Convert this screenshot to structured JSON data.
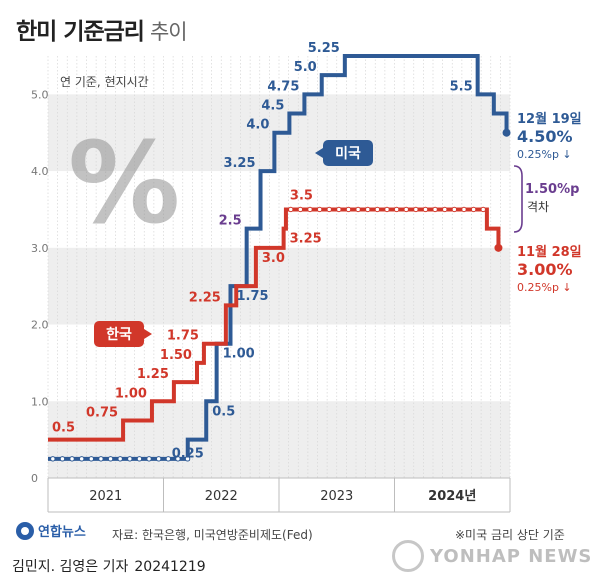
{
  "header": {
    "title": "한미 기준금리",
    "subtitle": "추이"
  },
  "note_unit": "연 기준, 현지시간",
  "percent_glyph": "%",
  "footer": {
    "agency": "연합뉴스",
    "source": "자료: 한국은행, 미국연방준비제도(Fed)",
    "footnote": "※미국 금리 상단 기준",
    "credit": "김민지. 김영은 기자",
    "date": "20241219",
    "watermark": "YONHAP NEWS"
  },
  "colors": {
    "us": "#2e5a95",
    "korea": "#d1372a",
    "gap": "#6a3d8f",
    "grid_band": "#eeeeee"
  },
  "chart_data": {
    "type": "line",
    "step": true,
    "ylim": [
      0,
      5.5
    ],
    "yticks": [
      "0",
      "1.0",
      "2.0",
      "3.0",
      "4.0",
      "5.0"
    ],
    "ytick_values": [
      0,
      1,
      2,
      3,
      4,
      5
    ],
    "xlim": [
      2021.0,
      2025.0
    ],
    "xticks": [
      "2021",
      "2022",
      "2023",
      "2024년"
    ],
    "xtick_centers": [
      2021.5,
      2022.5,
      2023.5,
      2024.5
    ],
    "series": [
      {
        "name": "미국",
        "color": "#2e5a95",
        "points": [
          [
            2021.0,
            0.25
          ],
          [
            2022.21,
            0.5
          ],
          [
            2022.37,
            1.0
          ],
          [
            2022.46,
            1.75
          ],
          [
            2022.58,
            2.5
          ],
          [
            2022.72,
            3.25
          ],
          [
            2022.84,
            4.0
          ],
          [
            2022.96,
            4.5
          ],
          [
            2023.09,
            4.75
          ],
          [
            2023.22,
            5.0
          ],
          [
            2023.37,
            5.25
          ],
          [
            2023.57,
            5.5
          ],
          [
            2024.72,
            5.0
          ],
          [
            2024.86,
            4.75
          ],
          [
            2024.97,
            4.5
          ]
        ],
        "labels": [
          {
            "text": "0.25",
            "at": 1,
            "pos": "below"
          },
          {
            "text": "0.5",
            "at": 2,
            "pos": "right"
          },
          {
            "text": "1.00",
            "at": 3,
            "pos": "right"
          },
          {
            "text": "1.75",
            "at": 4,
            "pos": "right"
          },
          {
            "text": "2.5",
            "at": 5,
            "pos": "left",
            "color": "#6a3d8f"
          },
          {
            "text": "3.25",
            "at": 6,
            "pos": "left"
          },
          {
            "text": "4.0",
            "at": 7,
            "pos": "left"
          },
          {
            "text": "4.5",
            "at": 8,
            "pos": "left"
          },
          {
            "text": "4.75",
            "at": 9,
            "pos": "left"
          },
          {
            "text": "5.0",
            "at": 10,
            "pos": "left"
          },
          {
            "text": "5.25",
            "at": 11,
            "pos": "left"
          },
          {
            "text": "5.5",
            "at": 12,
            "pos": "left"
          }
        ],
        "badge": "미국",
        "end_date": "12월 19일",
        "end_value": "4.50%",
        "end_change": "0.25%p ↓"
      },
      {
        "name": "한국",
        "color": "#d1372a",
        "points": [
          [
            2021.0,
            0.5
          ],
          [
            2021.65,
            0.75
          ],
          [
            2021.9,
            1.0
          ],
          [
            2022.09,
            1.25
          ],
          [
            2022.29,
            1.5
          ],
          [
            2022.35,
            1.75
          ],
          [
            2022.54,
            2.25
          ],
          [
            2022.63,
            2.5
          ],
          [
            2022.8,
            3.0
          ],
          [
            2023.04,
            3.25
          ],
          [
            2023.06,
            3.5
          ],
          [
            2024.8,
            3.25
          ],
          [
            2024.9,
            3.0
          ]
        ],
        "labels": [
          {
            "text": "0.5",
            "at": 0,
            "pos": "start"
          },
          {
            "text": "0.75",
            "at": 1,
            "pos": "left"
          },
          {
            "text": "1.00",
            "at": 2,
            "pos": "left"
          },
          {
            "text": "1.25",
            "at": 3,
            "pos": "left"
          },
          {
            "text": "1.50",
            "at": 4,
            "pos": "left"
          },
          {
            "text": "1.75",
            "at": 5,
            "pos": "left"
          },
          {
            "text": "2.25",
            "at": 6,
            "pos": "left"
          },
          {
            "text": "3.0",
            "at": 8,
            "pos": "right"
          },
          {
            "text": "3.25",
            "at": 9,
            "pos": "right"
          },
          {
            "text": "3.5",
            "at": 10,
            "pos": "above"
          }
        ],
        "badge": "한국",
        "end_date": "11월 28일",
        "end_value": "3.00%",
        "end_change": "0.25%p ↓"
      }
    ],
    "gap_annotation": {
      "value": "1.50%p",
      "label": "격차"
    }
  }
}
